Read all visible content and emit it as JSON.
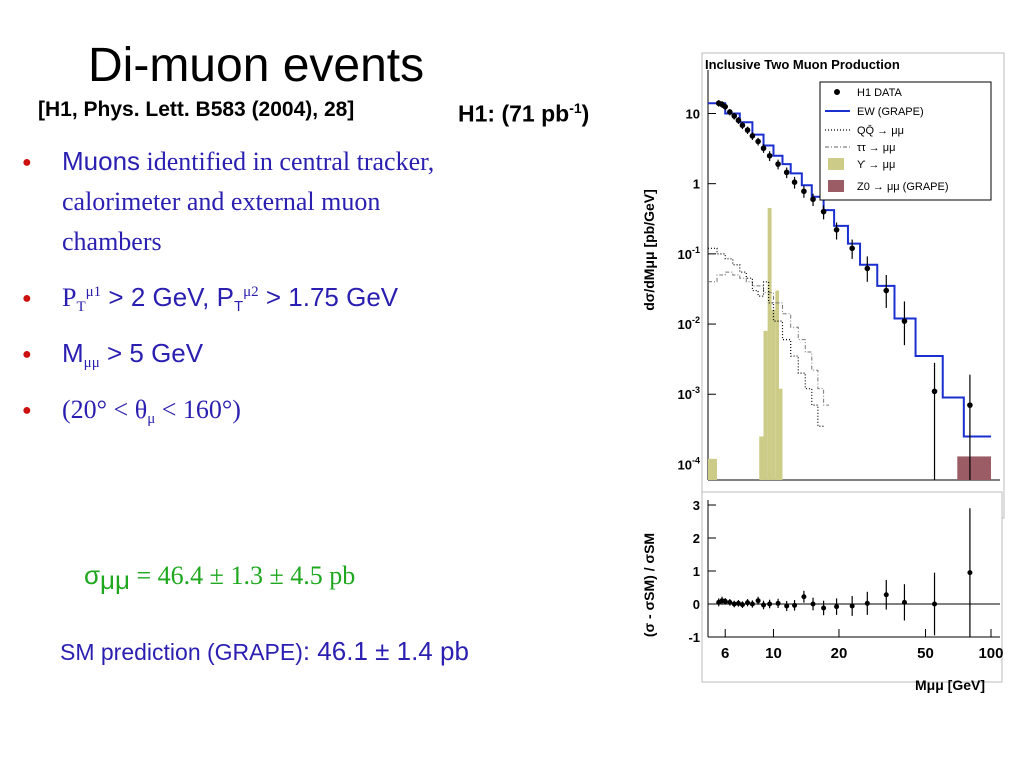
{
  "slide": {
    "title": "Di-muon events",
    "reference": "[H1, Phys. Lett. B583 (2004), 28]",
    "luminosity": {
      "prefix": "H1: (71 pb",
      "sup": "-1",
      "suffix": ")"
    },
    "bullets": {
      "b1_sans": "Muons",
      "b1_serif": " identified in central tracker, calorimeter and external muon chambers",
      "b2": {
        "p1": "P",
        "sub1": "T",
        "sup1": "μ1",
        "mid": " > 2 GeV, P",
        "sub2": "T",
        "sup2": "μ2",
        "end": "  > 1.75 GeV"
      },
      "b3": {
        "m": "M",
        "sub": "μμ",
        "end": " > 5 GeV"
      },
      "b4": {
        "start": "(20° < θ",
        "sub": "μ",
        "end": "  < 160°)"
      }
    },
    "cross_section": {
      "sigma": "σ",
      "sub": "μμ",
      "value": " = 46.4 ± 1.3 ± 4.5 pb"
    },
    "sm_prediction": {
      "label": "SM prediction (GRAPE)",
      "value": ": 46.1 ± 1.4 pb"
    },
    "colors": {
      "bullet_text": "#2a1fb0",
      "bullet_dot": "#cc1010",
      "cross_section": "#1fa81f",
      "ew_line": "#1a2fd0",
      "upsilon": "#cccc88",
      "z0": "#9b5c66"
    }
  },
  "chart_data": [
    {
      "type": "line",
      "title": "Inclusive Two Muon Production",
      "xlabel": "",
      "ylabel": "dσ/dMμμ  [pb/GeV]",
      "xscale": "log",
      "yscale": "log",
      "xlim": [
        5,
        110
      ],
      "ylim": [
        6e-05,
        30
      ],
      "ytick_labels": [
        "10",
        "1",
        "10-1",
        "10-2",
        "10-3",
        "10-4"
      ],
      "ytick_values": [
        10,
        1,
        0.1,
        0.01,
        0.001,
        0.0001
      ],
      "legend": {
        "placement": "top-right",
        "entries": [
          "H1 DATA",
          "EW (GRAPE)",
          "QQ̄ → μμ",
          "ττ → μμ",
          "ϒ → μμ",
          "Z0 → μμ (GRAPE)"
        ]
      },
      "series": [
        {
          "name": "H1 DATA",
          "x": [
            5.6,
            5.8,
            6.0,
            6.3,
            6.6,
            6.9,
            7.2,
            7.6,
            8.0,
            8.5,
            9.0,
            9.6,
            10.5,
            11.5,
            12.5,
            13.8,
            15.2,
            17.0,
            19.5,
            23.0,
            27.0,
            33.0,
            40.0,
            55.0,
            80.0
          ],
          "y": [
            14,
            13.5,
            12.5,
            10.5,
            9.2,
            8.0,
            6.8,
            5.8,
            4.8,
            4.0,
            3.2,
            2.5,
            1.9,
            1.45,
            1.05,
            0.78,
            0.6,
            0.4,
            0.22,
            0.12,
            0.062,
            0.03,
            0.011,
            0.0011,
            0.0007
          ],
          "yerr_low": [
            1.5,
            1.5,
            1.3,
            1.1,
            1.0,
            0.9,
            0.8,
            0.7,
            0.6,
            0.5,
            0.45,
            0.4,
            0.3,
            0.25,
            0.2,
            0.15,
            0.12,
            0.09,
            0.06,
            0.035,
            0.022,
            0.013,
            0.006,
            0.00105,
            0.00065
          ],
          "yerr_high": [
            1.5,
            1.5,
            1.3,
            1.1,
            1.0,
            0.9,
            0.8,
            0.7,
            0.6,
            0.5,
            0.45,
            0.4,
            0.3,
            0.25,
            0.2,
            0.15,
            0.12,
            0.09,
            0.06,
            0.04,
            0.03,
            0.02,
            0.01,
            0.0017,
            0.0012
          ]
        },
        {
          "name": "EW (GRAPE)",
          "edges": [
            5,
            6,
            7,
            8,
            9,
            10,
            11,
            12,
            13.5,
            15,
            17,
            19,
            22,
            25,
            30,
            36,
            45,
            60,
            75,
            100
          ],
          "values": [
            14,
            10,
            7.5,
            5.0,
            3.5,
            2.5,
            1.9,
            1.4,
            0.95,
            0.65,
            0.42,
            0.25,
            0.14,
            0.07,
            0.035,
            0.012,
            0.0035,
            0.0009,
            0.00025
          ]
        },
        {
          "name": "QQ̄ → μμ",
          "edges": [
            5,
            5.5,
            6,
            6.5,
            7,
            7.5,
            8,
            8.5,
            9,
            9.5,
            10,
            11,
            12,
            13,
            14,
            15,
            16,
            17
          ],
          "values": [
            0.12,
            0.1,
            0.085,
            0.07,
            0.055,
            0.045,
            0.03,
            0.025,
            0.04,
            0.02,
            0.011,
            0.006,
            0.0035,
            0.002,
            0.0012,
            0.0007,
            0.00035
          ]
        },
        {
          "name": "ττ → μμ",
          "edges": [
            5,
            5.5,
            6,
            6.5,
            7,
            7.5,
            8,
            9,
            10,
            11,
            12,
            13,
            14,
            15,
            16,
            17,
            18
          ],
          "values": [
            0.04,
            0.05,
            0.055,
            0.05,
            0.045,
            0.04,
            0.035,
            0.028,
            0.02,
            0.014,
            0.009,
            0.006,
            0.004,
            0.0022,
            0.0012,
            0.0007
          ]
        },
        {
          "name": "ϒ → μμ",
          "edges": [
            5,
            5.5,
            8.6,
            9.0,
            9.4,
            9.8,
            10.2,
            10.6,
            11.0
          ],
          "values": [
            0.00012,
            0,
            0.00025,
            0.008,
            0.45,
            0.016,
            0.03,
            0.0012
          ]
        },
        {
          "name": "Z0 → μμ (GRAPE)",
          "edges": [
            70,
            100
          ],
          "values": [
            0.00013
          ]
        }
      ]
    },
    {
      "type": "scatter",
      "title": "",
      "xlabel": "Mμμ  [GeV]",
      "ylabel": "(σ - σSM) / σSM",
      "xscale": "log",
      "xlim": [
        5,
        110
      ],
      "ylim": [
        -1,
        3
      ],
      "xtick_labels": [
        "6",
        "10",
        "20",
        "50",
        "100"
      ],
      "xtick_values": [
        6,
        10,
        20,
        50,
        100
      ],
      "ytick_labels": [
        "-1",
        "0",
        "1",
        "2",
        "3"
      ],
      "ytick_values": [
        -1,
        0,
        1,
        2,
        3
      ],
      "reference_line": 0,
      "series": [
        {
          "name": "",
          "x": [
            5.6,
            5.8,
            6.0,
            6.3,
            6.6,
            6.9,
            7.2,
            7.6,
            8.0,
            8.5,
            9.0,
            9.6,
            10.5,
            11.5,
            12.5,
            13.8,
            15.2,
            17.0,
            19.5,
            23.0,
            27.0,
            33.0,
            40.0,
            55.0,
            80.0
          ],
          "y": [
            0.05,
            0.1,
            0.08,
            0.05,
            0.0,
            0.02,
            -0.02,
            0.04,
            0.0,
            0.1,
            -0.03,
            0.0,
            0.02,
            -0.06,
            -0.04,
            0.22,
            0.0,
            -0.12,
            -0.08,
            -0.06,
            0.02,
            0.28,
            0.05,
            0.0,
            0.95
          ],
          "yerr": [
            0.12,
            0.12,
            0.1,
            0.1,
            0.1,
            0.1,
            0.1,
            0.11,
            0.11,
            0.12,
            0.13,
            0.13,
            0.14,
            0.15,
            0.16,
            0.18,
            0.19,
            0.22,
            0.25,
            0.3,
            0.35,
            0.45,
            0.55,
            0.95,
            1.95
          ]
        }
      ]
    }
  ]
}
